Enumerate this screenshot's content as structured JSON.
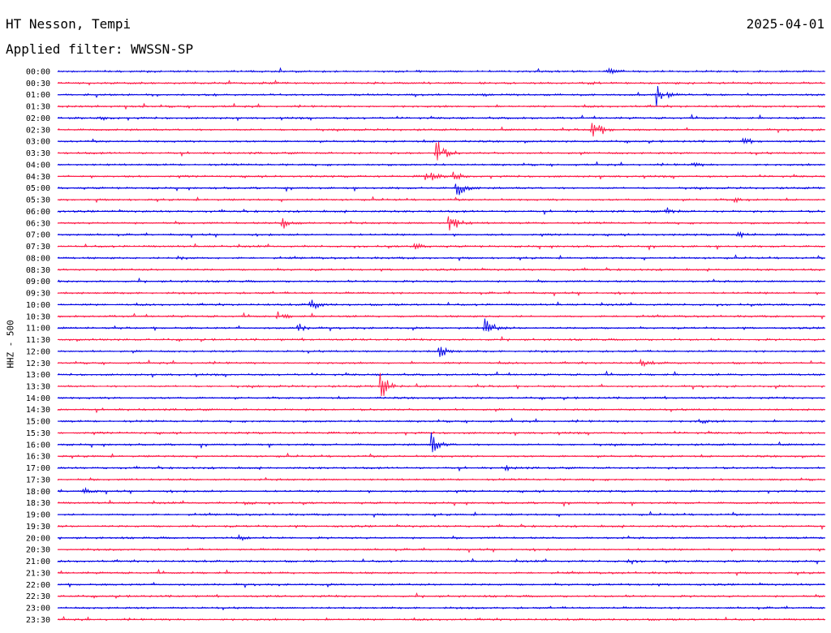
{
  "header": {
    "station": "HT Nesson, Tempi",
    "date": "2025-04-01",
    "filter": "Applied filter: WWSSN-SP"
  },
  "colors": {
    "trace_a": "#0000e6",
    "trace_b": "#ff1744",
    "text": "#000000"
  },
  "chart_data": {
    "type": "line",
    "subtype": "helicorder",
    "title": "HT Nesson, Tempi",
    "ylabel": "HHZ - 500",
    "xlabel": "",
    "row_labels": [
      "00:00",
      "00:30",
      "01:00",
      "01:30",
      "02:00",
      "02:30",
      "03:00",
      "03:30",
      "04:00",
      "04:30",
      "05:00",
      "05:30",
      "06:00",
      "06:30",
      "07:00",
      "07:30",
      "08:00",
      "08:30",
      "09:00",
      "09:30",
      "10:00",
      "10:30",
      "11:00",
      "11:30",
      "12:00",
      "12:30",
      "13:00",
      "13:30",
      "14:00",
      "14:30",
      "15:00",
      "15:30",
      "16:00",
      "16:30",
      "17:00",
      "17:30",
      "18:00",
      "18:30",
      "19:00",
      "19:30",
      "20:00",
      "20:30",
      "21:00",
      "21:30",
      "22:00",
      "22:30",
      "23:00",
      "23:30"
    ],
    "row_colors": [
      "blue",
      "red"
    ],
    "minutes_per_row": 30,
    "grid": false,
    "events": [
      {
        "row": "00:00",
        "minute": 21.5,
        "amp": 0.5
      },
      {
        "row": "00:30",
        "minute": 20.8,
        "amp": 0.2
      },
      {
        "row": "01:00",
        "minute": 23.4,
        "amp": 1.6
      },
      {
        "row": "02:00",
        "minute": 1.7,
        "amp": 0.3
      },
      {
        "row": "02:30",
        "minute": 20.9,
        "amp": 1.7
      },
      {
        "row": "03:00",
        "minute": 26.8,
        "amp": 0.5
      },
      {
        "row": "03:30",
        "minute": 14.8,
        "amp": 2.2
      },
      {
        "row": "04:00",
        "minute": 24.8,
        "amp": 0.3
      },
      {
        "row": "04:30",
        "minute": 14.4,
        "amp": 1.2
      },
      {
        "row": "04:30",
        "minute": 15.4,
        "amp": 1.0
      },
      {
        "row": "05:00",
        "minute": 15.6,
        "amp": 1.5
      },
      {
        "row": "05:30",
        "minute": 26.4,
        "amp": 0.4
      },
      {
        "row": "06:00",
        "minute": 23.8,
        "amp": 0.6
      },
      {
        "row": "06:30",
        "minute": 8.8,
        "amp": 1.0
      },
      {
        "row": "06:30",
        "minute": 15.3,
        "amp": 1.8
      },
      {
        "row": "07:00",
        "minute": 26.6,
        "amp": 0.4
      },
      {
        "row": "07:30",
        "minute": 13.9,
        "amp": 0.5
      },
      {
        "row": "08:00",
        "minute": 4.7,
        "amp": 0.4
      },
      {
        "row": "10:00",
        "minute": 9.9,
        "amp": 0.8
      },
      {
        "row": "10:30",
        "minute": 8.6,
        "amp": 0.6
      },
      {
        "row": "11:00",
        "minute": 9.4,
        "amp": 0.6
      },
      {
        "row": "11:00",
        "minute": 16.7,
        "amp": 1.5
      },
      {
        "row": "12:00",
        "minute": 14.9,
        "amp": 1.0
      },
      {
        "row": "12:30",
        "minute": 22.8,
        "amp": 0.5
      },
      {
        "row": "13:30",
        "minute": 12.6,
        "amp": 2.4
      },
      {
        "row": "15:00",
        "minute": 25.0,
        "amp": 0.5
      },
      {
        "row": "16:00",
        "minute": 14.6,
        "amp": 1.6
      },
      {
        "row": "17:00",
        "minute": 17.5,
        "amp": 0.4
      },
      {
        "row": "18:00",
        "minute": 1.0,
        "amp": 0.4
      },
      {
        "row": "18:30",
        "minute": 7.3,
        "amp": 0.3
      },
      {
        "row": "20:00",
        "minute": 7.0,
        "amp": 0.5
      },
      {
        "row": "21:00",
        "minute": 22.3,
        "amp": 0.3
      }
    ]
  }
}
